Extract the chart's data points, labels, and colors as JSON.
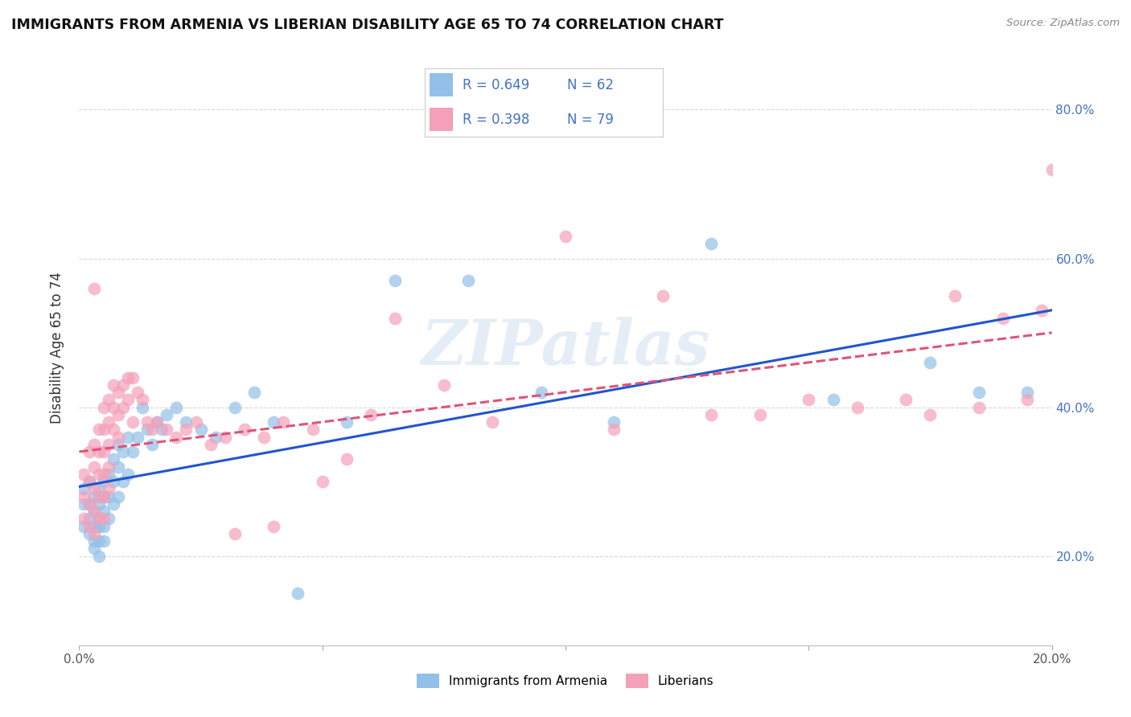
{
  "title": "IMMIGRANTS FROM ARMENIA VS LIBERIAN DISABILITY AGE 65 TO 74 CORRELATION CHART",
  "source": "Source: ZipAtlas.com",
  "ylabel": "Disability Age 65 to 74",
  "x_min": 0.0,
  "x_max": 0.2,
  "y_min": 0.08,
  "y_max": 0.88,
  "x_ticks": [
    0.0,
    0.05,
    0.1,
    0.15,
    0.2
  ],
  "y_ticks": [
    0.2,
    0.4,
    0.6,
    0.8
  ],
  "grid_color": "#d8d8d8",
  "watermark": "ZIPatlas",
  "color_blue": "#92C0E8",
  "color_pink": "#F4A0B8",
  "color_blue_line": "#2255CC",
  "color_pink_line": "#DD5577",
  "color_text_blue": "#4472C4",
  "legend_label_1": "Immigrants from Armenia",
  "legend_label_2": "Liberians",
  "blue_x": [
    0.001,
    0.001,
    0.001,
    0.002,
    0.002,
    0.002,
    0.002,
    0.003,
    0.003,
    0.003,
    0.003,
    0.003,
    0.004,
    0.004,
    0.004,
    0.004,
    0.004,
    0.004,
    0.005,
    0.005,
    0.005,
    0.005,
    0.005,
    0.006,
    0.006,
    0.006,
    0.007,
    0.007,
    0.007,
    0.008,
    0.008,
    0.008,
    0.009,
    0.009,
    0.01,
    0.01,
    0.011,
    0.012,
    0.013,
    0.014,
    0.015,
    0.016,
    0.017,
    0.018,
    0.02,
    0.022,
    0.025,
    0.028,
    0.032,
    0.036,
    0.04,
    0.045,
    0.055,
    0.065,
    0.08,
    0.095,
    0.11,
    0.13,
    0.155,
    0.175,
    0.185,
    0.195
  ],
  "blue_y": [
    0.29,
    0.27,
    0.24,
    0.3,
    0.27,
    0.25,
    0.23,
    0.28,
    0.26,
    0.24,
    0.22,
    0.21,
    0.29,
    0.27,
    0.25,
    0.24,
    0.22,
    0.2,
    0.3,
    0.28,
    0.26,
    0.24,
    0.22,
    0.31,
    0.28,
    0.25,
    0.33,
    0.3,
    0.27,
    0.35,
    0.32,
    0.28,
    0.34,
    0.3,
    0.36,
    0.31,
    0.34,
    0.36,
    0.4,
    0.37,
    0.35,
    0.38,
    0.37,
    0.39,
    0.4,
    0.38,
    0.37,
    0.36,
    0.4,
    0.42,
    0.38,
    0.15,
    0.38,
    0.57,
    0.57,
    0.42,
    0.38,
    0.62,
    0.41,
    0.46,
    0.42,
    0.42
  ],
  "pink_x": [
    0.001,
    0.001,
    0.001,
    0.002,
    0.002,
    0.002,
    0.002,
    0.003,
    0.003,
    0.003,
    0.003,
    0.003,
    0.003,
    0.004,
    0.004,
    0.004,
    0.004,
    0.004,
    0.005,
    0.005,
    0.005,
    0.005,
    0.005,
    0.005,
    0.006,
    0.006,
    0.006,
    0.006,
    0.006,
    0.007,
    0.007,
    0.007,
    0.008,
    0.008,
    0.008,
    0.009,
    0.009,
    0.01,
    0.01,
    0.011,
    0.011,
    0.012,
    0.013,
    0.014,
    0.015,
    0.016,
    0.018,
    0.02,
    0.022,
    0.024,
    0.027,
    0.03,
    0.034,
    0.038,
    0.042,
    0.048,
    0.055,
    0.06,
    0.065,
    0.075,
    0.085,
    0.1,
    0.11,
    0.12,
    0.13,
    0.14,
    0.15,
    0.16,
    0.17,
    0.175,
    0.18,
    0.185,
    0.19,
    0.195,
    0.198,
    0.2,
    0.032,
    0.04,
    0.05
  ],
  "pink_y": [
    0.31,
    0.28,
    0.25,
    0.34,
    0.3,
    0.27,
    0.24,
    0.35,
    0.32,
    0.29,
    0.26,
    0.23,
    0.56,
    0.37,
    0.34,
    0.31,
    0.28,
    0.25,
    0.4,
    0.37,
    0.34,
    0.31,
    0.28,
    0.25,
    0.41,
    0.38,
    0.35,
    0.32,
    0.29,
    0.43,
    0.4,
    0.37,
    0.42,
    0.39,
    0.36,
    0.43,
    0.4,
    0.44,
    0.41,
    0.44,
    0.38,
    0.42,
    0.41,
    0.38,
    0.37,
    0.38,
    0.37,
    0.36,
    0.37,
    0.38,
    0.35,
    0.36,
    0.37,
    0.36,
    0.38,
    0.37,
    0.33,
    0.39,
    0.52,
    0.43,
    0.38,
    0.63,
    0.37,
    0.55,
    0.39,
    0.39,
    0.41,
    0.4,
    0.41,
    0.39,
    0.55,
    0.4,
    0.52,
    0.41,
    0.53,
    0.72,
    0.23,
    0.24,
    0.3
  ]
}
